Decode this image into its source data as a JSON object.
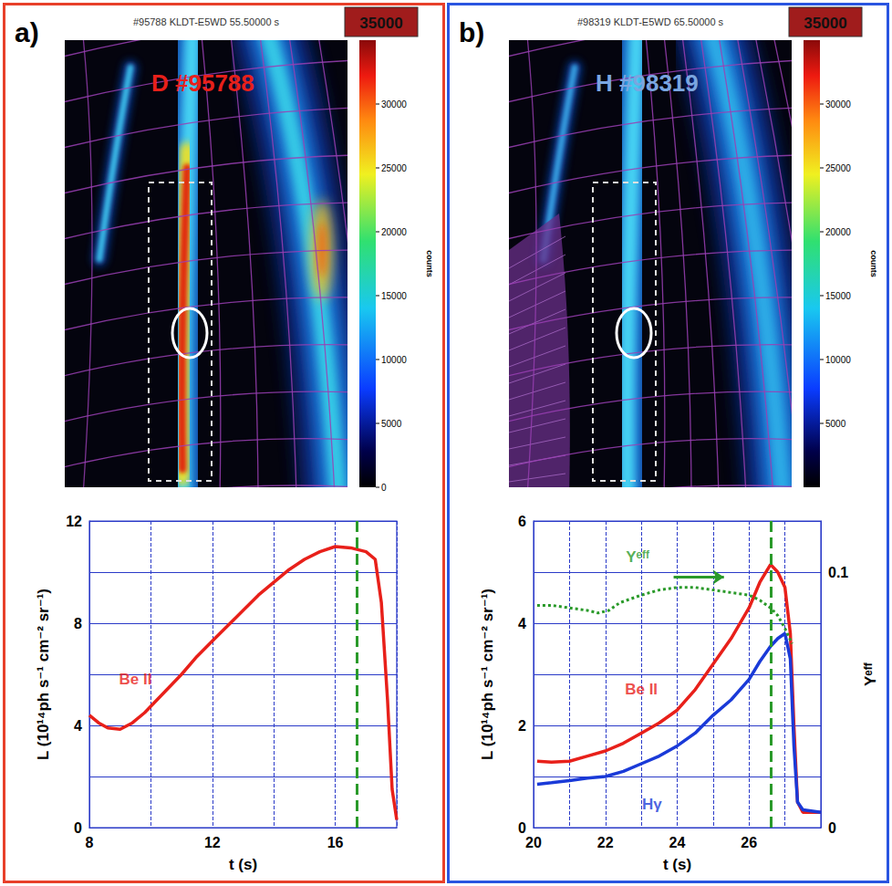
{
  "panels": [
    {
      "letter": "a)",
      "image": {
        "title": "#95788 KLDT-E5WD 55.50000 s",
        "label": "D #95788",
        "color": "#e8201a",
        "badge": "35000",
        "colorbar": {
          "range": [
            0,
            35000
          ],
          "ticks": [
            0,
            5000,
            10000,
            15000,
            20000,
            25000,
            30000
          ],
          "label": "counts"
        }
      }
    },
    {
      "letter": "b)",
      "image": {
        "title": "#98319 KLDT-E5WD 65.50000 s",
        "label": "H #98319",
        "color": "#7aa6e0",
        "badge": "35000",
        "colorbar": {
          "range": [
            0,
            35000
          ],
          "ticks": [
            5000,
            10000,
            15000,
            20000,
            25000,
            30000
          ],
          "label": "counts"
        }
      }
    }
  ],
  "chart_data": [
    {
      "type": "line",
      "xlabel": "t (s)",
      "ylabel": "L (10¹⁴ph s⁻¹ cm⁻² sr⁻¹)",
      "xlim": [
        8,
        18
      ],
      "xticks": [
        8,
        12,
        16
      ],
      "ylim": [
        0,
        12
      ],
      "yticks": [
        0,
        4,
        8,
        12
      ],
      "grid": true,
      "vlines": [
        16.7
      ],
      "series": [
        {
          "name": "Be II",
          "color": "#e8201a",
          "line_style": "solid",
          "x": [
            8,
            8.3,
            8.6,
            9,
            9.4,
            9.8,
            10.2,
            10.6,
            11,
            11.5,
            12,
            12.5,
            13,
            13.5,
            14,
            14.5,
            15,
            15.5,
            16,
            16.5,
            17,
            17.3,
            17.5,
            17.7,
            17.85,
            18
          ],
          "values": [
            4.4,
            4.1,
            3.9,
            3.85,
            4.1,
            4.5,
            5.0,
            5.5,
            6.0,
            6.7,
            7.3,
            7.9,
            8.5,
            9.1,
            9.6,
            10.1,
            10.5,
            10.8,
            11.0,
            10.95,
            10.8,
            10.5,
            8.8,
            5.0,
            1.5,
            0.3
          ]
        }
      ]
    },
    {
      "type": "line",
      "xlabel": "t (s)",
      "ylabel": "L (10¹⁴ph s⁻¹ cm⁻² sr⁻¹)",
      "y2label": "Yᵉᶠᶠ",
      "xlim": [
        20,
        28
      ],
      "xticks": [
        20,
        22,
        24,
        26
      ],
      "ylim": [
        0,
        6
      ],
      "yticks": [
        0,
        2,
        4,
        6
      ],
      "y2lim": [
        0,
        0.12
      ],
      "y2ticks": [
        0,
        0.1
      ],
      "grid": true,
      "vlines": [
        26.6
      ],
      "series": [
        {
          "name": "Be II",
          "color": "#e8201a",
          "line_style": "solid",
          "x": [
            20.1,
            20.5,
            21,
            21.5,
            22,
            22.5,
            23,
            23.5,
            24,
            24.5,
            25,
            25.5,
            26,
            26.3,
            26.6,
            26.8,
            27,
            27.15,
            27.25,
            27.35,
            27.5,
            28
          ],
          "values": [
            1.3,
            1.28,
            1.3,
            1.4,
            1.5,
            1.65,
            1.85,
            2.05,
            2.3,
            2.7,
            3.2,
            3.7,
            4.3,
            4.8,
            5.15,
            5.0,
            4.7,
            3.8,
            2.0,
            0.5,
            0.3,
            0.3
          ]
        },
        {
          "name": "Hγ",
          "color": "#1a3ad8",
          "line_style": "solid",
          "x": [
            20.1,
            20.5,
            21,
            21.5,
            22,
            22.5,
            23,
            23.5,
            24,
            24.5,
            25,
            25.5,
            26,
            26.3,
            26.6,
            26.8,
            27,
            27.15,
            27.25,
            27.35,
            27.5,
            28
          ],
          "values": [
            0.85,
            0.88,
            0.92,
            0.97,
            1.0,
            1.1,
            1.25,
            1.4,
            1.6,
            1.85,
            2.2,
            2.5,
            2.9,
            3.25,
            3.55,
            3.7,
            3.8,
            3.3,
            1.6,
            0.5,
            0.35,
            0.3
          ]
        },
        {
          "name": "Yᵉᶠᶠ",
          "color": "#2a9a2a",
          "line_style": "dotted",
          "axis": "y2",
          "x": [
            20.1,
            20.5,
            21,
            21.5,
            21.8,
            22.1,
            22.4,
            23,
            23.5,
            24,
            24.5,
            25,
            25.5,
            26,
            26.3,
            26.6,
            26.8,
            27,
            27.2
          ],
          "values": [
            0.087,
            0.087,
            0.086,
            0.085,
            0.084,
            0.085,
            0.088,
            0.091,
            0.093,
            0.094,
            0.094,
            0.093,
            0.092,
            0.091,
            0.089,
            0.086,
            0.083,
            0.078,
            0.072
          ]
        }
      ]
    }
  ]
}
